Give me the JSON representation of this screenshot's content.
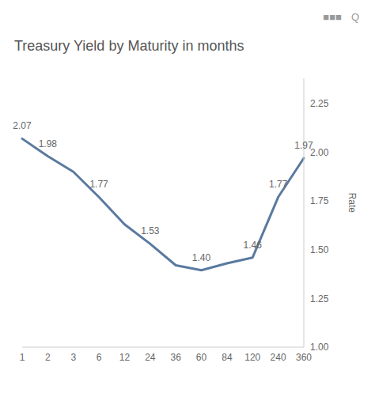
{
  "chart_data": {
    "type": "line",
    "title": "Treasury Yield by Maturity in months",
    "y_label": "Rate",
    "categories": [
      "1",
      "2",
      "3",
      "6",
      "12",
      "24",
      "36",
      "60",
      "84",
      "120",
      "240",
      "360"
    ],
    "values": [
      2.07,
      1.98,
      1.9,
      1.77,
      1.63,
      1.53,
      1.42,
      1.395,
      1.43,
      1.46,
      1.77,
      1.97
    ],
    "value_labels": [
      "2.07",
      "1.98",
      null,
      "1.77",
      null,
      "1.53",
      null,
      "1.40",
      null,
      "1.46",
      "1.77",
      "1.97"
    ],
    "color": "#5a7a9f",
    "ylim": [
      1.0,
      2.38
    ],
    "yticks": [
      {
        "value": 1.0,
        "label": "1.00"
      },
      {
        "value": 1.25,
        "label": "1.25"
      },
      {
        "value": 1.5,
        "label": "1.50"
      },
      {
        "value": 1.75,
        "label": "1.75"
      },
      {
        "value": 2.0,
        "label": "2.00"
      },
      {
        "value": 2.25,
        "label": "2.25"
      }
    ],
    "grid": false,
    "annotations": [
      "■■■",
      "Q"
    ]
  }
}
